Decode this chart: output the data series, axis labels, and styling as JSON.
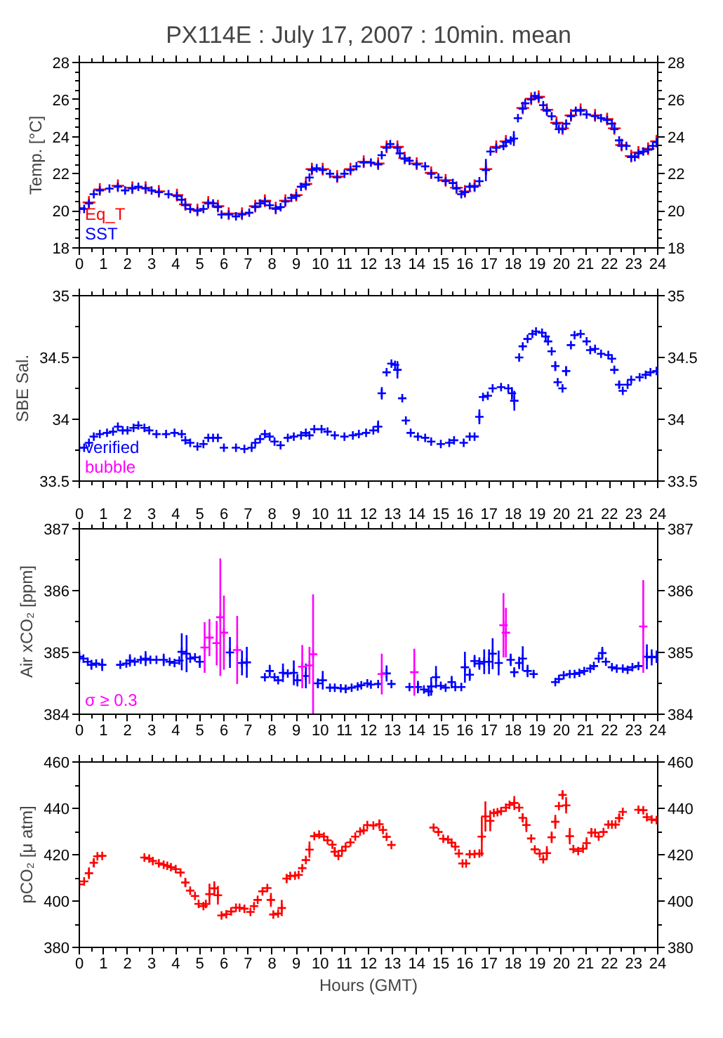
{
  "chart_data": [
    {
      "type": "scatter",
      "title": "PX114E : July 17, 2007 : 10min. mean",
      "ylabel": "Temp. [°C]",
      "marker": "cross",
      "legend": "bottom left",
      "xlim": [
        0,
        24
      ],
      "xticks": [
        0,
        1,
        2,
        3,
        4,
        5,
        6,
        7,
        8,
        9,
        10,
        11,
        12,
        13,
        14,
        15,
        16,
        17,
        18,
        19,
        20,
        21,
        22,
        23,
        24
      ],
      "ylim": [
        18,
        28
      ],
      "yticks": [
        18,
        20,
        22,
        24,
        26,
        28
      ],
      "y2lim": [
        18,
        28
      ],
      "y2ticks": [
        18,
        20,
        22,
        24,
        26,
        28
      ],
      "series": [
        {
          "name": "Eq_T",
          "color": "#ff0000",
          "x": [
            0,
            0.4,
            0.85,
            1.6,
            2.2,
            2.75,
            3.3,
            4.05,
            4.4,
            4.9,
            5.35,
            5.75,
            6.2,
            6.75,
            7.3,
            7.7,
            8.15,
            8.55,
            9.0,
            9.4,
            9.65,
            10.1,
            10.7,
            11.25,
            11.8,
            12.4,
            12.75,
            13.2,
            13.5,
            14.0,
            14.6,
            15.2,
            15.65,
            16.0,
            16.4,
            16.87,
            17.3,
            17.7,
            18.4,
            18.75,
            19.06,
            19.4,
            19.8,
            20.05,
            20.4,
            20.8,
            21.4,
            21.9,
            22.2,
            22.5,
            22.9,
            23.2,
            23.6,
            23.95
          ],
          "values": [
            20.15,
            20.45,
            21.15,
            21.35,
            21.25,
            21.25,
            21.05,
            20.85,
            20.35,
            20.05,
            20.45,
            20.25,
            19.85,
            19.85,
            20.25,
            20.55,
            20.15,
            20.55,
            20.85,
            21.45,
            22.25,
            22.25,
            21.85,
            22.25,
            22.65,
            22.55,
            23.45,
            23.45,
            22.85,
            22.55,
            22.05,
            21.65,
            21.25,
            21.05,
            21.35,
            22.25,
            23.45,
            23.75,
            25.55,
            26.05,
            26.15,
            25.45,
            24.75,
            24.45,
            25.15,
            25.45,
            25.15,
            24.95,
            24.45,
            23.55,
            22.95,
            23.15,
            23.35,
            23.75
          ]
        },
        {
          "name": "SST",
          "color": "#0000ff",
          "x": [
            0,
            0.2,
            0.4,
            0.6,
            0.85,
            1.25,
            1.6,
            1.9,
            2.2,
            2.45,
            2.75,
            3.0,
            3.3,
            3.7,
            4.05,
            4.25,
            4.4,
            4.6,
            4.9,
            5.15,
            5.35,
            5.55,
            5.75,
            5.9,
            6.2,
            6.5,
            6.75,
            7.05,
            7.3,
            7.5,
            7.7,
            7.9,
            8.15,
            8.35,
            8.55,
            8.8,
            9.0,
            9.2,
            9.4,
            9.55,
            9.65,
            9.85,
            10.1,
            10.4,
            10.7,
            11.0,
            11.25,
            11.5,
            11.8,
            12.1,
            12.4,
            12.55,
            12.75,
            12.9,
            13.2,
            13.3,
            13.5,
            13.7,
            14.0,
            14.35,
            14.6,
            14.9,
            15.2,
            15.5,
            15.65,
            15.85,
            16.0,
            16.2,
            16.4,
            16.6,
            16.87,
            17.06,
            17.3,
            17.6,
            17.7,
            17.9,
            18.03,
            18.2,
            18.4,
            18.5,
            18.75,
            18.9,
            19.06,
            19.25,
            19.4,
            19.6,
            19.8,
            19.9,
            20.05,
            20.2,
            20.4,
            20.6,
            20.8,
            21.05,
            21.4,
            21.65,
            21.9,
            22.1,
            22.2,
            22.4,
            22.5,
            22.7,
            22.9,
            23.05,
            23.2,
            23.4,
            23.6,
            23.8,
            23.95
          ],
          "values": [
            20.1,
            20.1,
            20.4,
            20.9,
            21.1,
            21.2,
            21.3,
            21.1,
            21.2,
            21.3,
            21.2,
            21.1,
            21.0,
            20.9,
            20.8,
            20.6,
            20.3,
            20.1,
            20.0,
            20.1,
            20.4,
            20.4,
            20.2,
            19.8,
            19.8,
            19.7,
            19.8,
            19.9,
            20.2,
            20.4,
            20.5,
            20.3,
            20.1,
            20.2,
            20.5,
            20.7,
            20.8,
            21.3,
            21.4,
            21.8,
            22.2,
            22.3,
            22.2,
            22.0,
            21.8,
            22.0,
            22.2,
            22.4,
            22.6,
            22.6,
            22.5,
            23.0,
            23.4,
            23.6,
            23.4,
            23.1,
            22.8,
            22.7,
            22.5,
            22.4,
            22.0,
            21.8,
            21.6,
            21.5,
            21.2,
            20.9,
            21.0,
            21.3,
            21.3,
            21.6,
            22.2,
            23.2,
            23.4,
            23.5,
            23.7,
            23.8,
            23.9,
            25.0,
            25.5,
            25.8,
            26.0,
            26.2,
            26.1,
            25.7,
            25.4,
            25.1,
            24.7,
            24.4,
            24.4,
            24.7,
            25.1,
            25.4,
            25.4,
            25.2,
            25.1,
            25.0,
            24.9,
            24.7,
            24.4,
            23.8,
            23.5,
            23.5,
            22.9,
            22.9,
            23.1,
            23.2,
            23.3,
            23.5,
            23.7
          ],
          "errors": [
            null,
            null,
            null,
            null,
            null,
            null,
            null,
            null,
            null,
            null,
            null,
            null,
            null,
            null,
            null,
            null,
            null,
            null,
            null,
            null,
            null,
            null,
            null,
            null,
            null,
            null,
            null,
            null,
            null,
            null,
            null,
            null,
            null,
            null,
            null,
            null,
            null,
            null,
            null,
            null,
            null,
            null,
            null,
            null,
            null,
            null,
            null,
            null,
            null,
            null,
            null,
            null,
            null,
            null,
            null,
            null,
            null,
            null,
            null,
            null,
            null,
            null,
            null,
            null,
            null,
            null,
            null,
            null,
            null,
            null,
            0.6,
            null,
            null,
            null,
            null,
            null,
            0.4,
            null,
            null,
            null,
            null,
            null,
            null,
            null,
            null,
            null,
            null,
            null,
            null,
            null,
            null,
            null,
            null,
            null,
            null,
            null,
            null,
            null,
            null,
            null,
            null,
            null,
            null,
            null,
            null,
            null,
            null,
            null,
            null
          ]
        }
      ]
    },
    {
      "type": "scatter",
      "ylabel": "SBE Sal.",
      "marker": "cross",
      "legend": "bottom left",
      "tick_labels": "y",
      "xlim": [
        0,
        24
      ],
      "xticks": [
        0,
        1,
        2,
        3,
        4,
        5,
        6,
        7,
        8,
        9,
        10,
        11,
        12,
        13,
        14,
        15,
        16,
        17,
        18,
        19,
        20,
        21,
        22,
        23,
        24
      ],
      "ylim": [
        33.5,
        35
      ],
      "yticks": [
        33.5,
        34,
        34.5,
        35
      ],
      "y2lim": [
        33.5,
        35
      ],
      "y2ticks": [
        33.5,
        34,
        34.5,
        35
      ],
      "series": [
        {
          "name": "verified",
          "color": "#0000ff",
          "x": [
            0,
            0.2,
            0.4,
            0.6,
            0.85,
            1.15,
            1.4,
            1.6,
            1.8,
            2.0,
            2.25,
            2.45,
            2.7,
            2.9,
            3.2,
            3.6,
            3.95,
            4.25,
            4.4,
            4.6,
            4.9,
            5.15,
            5.35,
            5.55,
            5.75,
            6.0,
            6.5,
            6.85,
            7.15,
            7.3,
            7.5,
            7.7,
            7.9,
            8.1,
            8.35,
            8.65,
            8.9,
            9.2,
            9.4,
            9.55,
            9.75,
            10.05,
            10.3,
            10.6,
            11.0,
            11.35,
            11.6,
            11.9,
            12.2,
            12.4,
            12.55,
            12.75,
            12.95,
            13.1,
            13.2,
            13.4,
            13.55,
            13.75,
            14.05,
            14.35,
            14.6,
            15.0,
            15.35,
            15.55,
            15.95,
            16.2,
            16.4,
            16.6,
            16.75,
            16.95,
            17.15,
            17.5,
            17.8,
            17.95,
            18.05,
            18.25,
            18.4,
            18.6,
            18.8,
            18.95,
            19.2,
            19.35,
            19.45,
            19.6,
            19.75,
            19.85,
            20.05,
            20.2,
            20.4,
            20.55,
            20.8,
            21.05,
            21.2,
            21.4,
            21.65,
            21.95,
            22.1,
            22.2,
            22.4,
            22.55,
            22.75,
            22.9,
            23.25,
            23.5,
            23.7,
            23.95
          ],
          "values": [
            33.77,
            33.77,
            33.81,
            33.86,
            33.88,
            33.89,
            33.9,
            33.94,
            33.91,
            33.91,
            33.93,
            33.95,
            33.93,
            33.91,
            33.88,
            33.88,
            33.89,
            33.88,
            33.83,
            33.81,
            33.78,
            33.8,
            33.85,
            33.85,
            33.85,
            33.77,
            33.77,
            33.76,
            33.77,
            33.81,
            33.84,
            33.88,
            33.86,
            33.82,
            33.79,
            33.85,
            33.86,
            33.87,
            33.89,
            33.87,
            33.92,
            33.92,
            33.9,
            33.87,
            33.86,
            33.87,
            33.88,
            33.89,
            33.91,
            33.94,
            34.21,
            34.38,
            34.45,
            34.44,
            34.4,
            34.17,
            33.99,
            33.89,
            33.86,
            33.85,
            33.82,
            33.8,
            33.81,
            33.83,
            33.81,
            33.86,
            33.86,
            34.02,
            34.18,
            34.19,
            34.25,
            34.26,
            34.25,
            34.21,
            34.15,
            34.5,
            34.59,
            34.65,
            34.69,
            34.71,
            34.7,
            34.67,
            34.63,
            34.55,
            34.43,
            34.3,
            34.25,
            34.39,
            34.6,
            34.68,
            34.69,
            34.63,
            34.56,
            34.57,
            34.53,
            34.52,
            34.49,
            34.4,
            34.28,
            34.23,
            34.28,
            34.32,
            34.34,
            34.36,
            34.38,
            34.39
          ],
          "errors": [
            null,
            null,
            null,
            null,
            null,
            null,
            null,
            null,
            null,
            null,
            null,
            null,
            null,
            null,
            null,
            null,
            null,
            null,
            null,
            null,
            null,
            null,
            null,
            null,
            null,
            null,
            null,
            null,
            null,
            null,
            null,
            null,
            null,
            null,
            null,
            null,
            null,
            null,
            null,
            null,
            null,
            null,
            null,
            null,
            null,
            null,
            null,
            null,
            null,
            0.05,
            0.05,
            null,
            null,
            null,
            0.07,
            null,
            null,
            null,
            null,
            null,
            null,
            null,
            null,
            null,
            null,
            null,
            null,
            0.06,
            null,
            null,
            null,
            null,
            null,
            0.05,
            0.08,
            null,
            null,
            null,
            null,
            null,
            null,
            null,
            null,
            null,
            0.04,
            null,
            null,
            0.04,
            null,
            null,
            null,
            null,
            null,
            null,
            null,
            null,
            null,
            null,
            0.03,
            null,
            null,
            null,
            null,
            null,
            null,
            null
          ]
        },
        {
          "name": "bubble",
          "color": "#ff00ff"
        }
      ]
    },
    {
      "type": "scatter",
      "ylabel": "Air xCO₂ [ppm]",
      "marker": "cross",
      "legend": "bottom left",
      "xlim": [
        0,
        24
      ],
      "xticks": [
        0,
        1,
        2,
        3,
        4,
        5,
        6,
        7,
        8,
        9,
        10,
        11,
        12,
        13,
        14,
        15,
        16,
        17,
        18,
        19,
        20,
        21,
        22,
        23,
        24
      ],
      "x2lim": [
        0,
        24
      ],
      "x2ticks": [
        0,
        1,
        2,
        3,
        4,
        5,
        6,
        7,
        8,
        9,
        10,
        11,
        12,
        13,
        14,
        15,
        16,
        17,
        18,
        19,
        20,
        21,
        22,
        23,
        24
      ],
      "ylim": [
        384,
        387
      ],
      "yticks": [
        384,
        385,
        386,
        387
      ],
      "y2lim": [
        384,
        387
      ],
      "y2ticks": [
        384,
        385,
        386,
        387
      ],
      "series": [
        {
          "color": "#0000ff",
          "x": [
            0.0,
            0.17,
            0.35,
            0.5,
            0.7,
            0.95,
            1.7,
            1.95,
            2.1,
            2.3,
            2.55,
            2.75,
            2.95,
            3.2,
            3.5,
            3.75,
            3.95,
            4.15,
            4.25,
            4.45,
            4.6,
            4.8,
            5.0,
            6.25,
            6.75,
            6.95,
            7.7,
            7.9,
            8.1,
            8.25,
            8.45,
            8.65,
            8.9,
            9.05,
            9.4,
            9.9,
            10.1,
            10.4,
            10.6,
            10.85,
            11.05,
            11.3,
            11.55,
            11.7,
            11.95,
            12.1,
            12.4,
            12.75,
            12.95,
            13.7,
            14.05,
            14.3,
            14.5,
            14.6,
            14.8,
            15.0,
            15.2,
            15.45,
            15.6,
            15.85,
            16.0,
            16.2,
            16.4,
            16.6,
            16.8,
            17.0,
            17.15,
            17.4,
            17.9,
            18.05,
            18.25,
            18.4,
            18.6,
            18.85,
            19.75,
            19.9,
            20.1,
            20.35,
            20.55,
            20.75,
            20.95,
            21.2,
            21.35,
            21.55,
            21.7,
            21.85,
            22.1,
            22.3,
            22.55,
            22.75,
            22.95,
            23.2,
            23.55,
            23.75,
            23.95
          ],
          "values": [
            384.93,
            384.9,
            384.85,
            384.8,
            384.82,
            384.8,
            384.8,
            384.82,
            384.87,
            384.85,
            384.88,
            384.9,
            384.88,
            384.88,
            384.88,
            384.85,
            384.83,
            384.87,
            385.01,
            384.98,
            384.9,
            384.92,
            384.85,
            385.0,
            384.83,
            384.84,
            384.6,
            384.7,
            384.6,
            384.55,
            384.67,
            384.66,
            384.67,
            384.55,
            384.62,
            384.5,
            384.55,
            384.43,
            384.43,
            384.42,
            384.41,
            384.43,
            384.45,
            384.47,
            384.5,
            384.48,
            384.49,
            384.66,
            384.49,
            384.44,
            384.44,
            384.4,
            384.37,
            384.45,
            384.6,
            384.46,
            384.43,
            384.52,
            384.44,
            384.44,
            384.76,
            384.64,
            384.86,
            384.82,
            384.85,
            384.85,
            384.98,
            384.83,
            384.88,
            384.68,
            384.83,
            384.9,
            384.7,
            384.65,
            384.52,
            384.57,
            384.63,
            384.65,
            384.65,
            384.67,
            384.7,
            384.74,
            384.78,
            384.9,
            384.99,
            384.85,
            384.76,
            384.74,
            384.74,
            384.72,
            384.76,
            384.78,
            384.93,
            384.92,
            384.93
          ],
          "errors": [
            0.1,
            null,
            null,
            0.08,
            null,
            0.1,
            null,
            null,
            0.1,
            null,
            null,
            0.12,
            null,
            null,
            0.1,
            null,
            null,
            null,
            0.3,
            0.3,
            null,
            null,
            0.1,
            0.25,
            0.2,
            0.25,
            null,
            0.1,
            null,
            null,
            0.15,
            null,
            0.2,
            0.1,
            0.2,
            0.08,
            0.15,
            null,
            null,
            null,
            0.07,
            null,
            null,
            null,
            null,
            null,
            null,
            0.13,
            null,
            null,
            0.1,
            null,
            0.08,
            0.15,
            0.18,
            null,
            null,
            0.1,
            null,
            null,
            0.25,
            0.1,
            0.1,
            0.1,
            0.2,
            0.2,
            0.25,
            0.2,
            0.1,
            0.08,
            0.1,
            0.2,
            0.1,
            0.06,
            null,
            null,
            null,
            null,
            null,
            null,
            null,
            null,
            null,
            null,
            0.1,
            null,
            null,
            null,
            null,
            null,
            null,
            null,
            0.2,
            0.13,
            0.1
          ]
        },
        {
          "name": "σ ≥ 0.3",
          "color": "#ff00ff",
          "x": [
            5.2,
            5.4,
            5.7,
            5.85,
            6.0,
            6.55,
            9.25,
            9.55,
            9.7,
            12.55,
            13.9,
            17.6,
            17.7,
            23.4
          ],
          "values": [
            385.08,
            385.24,
            385.15,
            385.57,
            385.32,
            385.04,
            384.77,
            384.79,
            384.97,
            384.65,
            384.68,
            385.44,
            385.32,
            385.42
          ],
          "errors": [
            0.41,
            0.3,
            0.36,
            0.95,
            0.6,
            0.55,
            0.35,
            0.3,
            0.97,
            0.33,
            0.38,
            0.52,
            0.4,
            0.75
          ]
        }
      ]
    },
    {
      "type": "scatter",
      "ylabel": "pCO₂ [μ atm]",
      "xlabel": "Hours (GMT)",
      "marker": "cross",
      "xlim": [
        0,
        24
      ],
      "xticks": [
        0,
        1,
        2,
        3,
        4,
        5,
        6,
        7,
        8,
        9,
        10,
        11,
        12,
        13,
        14,
        15,
        16,
        17,
        18,
        19,
        20,
        21,
        22,
        23,
        24
      ],
      "ylim": [
        380,
        460
      ],
      "yticks": [
        380,
        400,
        420,
        440,
        460
      ],
      "y2lim": [
        380,
        460
      ],
      "y2ticks": [
        380,
        400,
        420,
        440,
        460
      ],
      "series": [
        {
          "color": "#ff0000",
          "x": [
            0.0,
            0.2,
            0.4,
            0.6,
            0.75,
            0.95,
            2.7,
            2.9,
            3.05,
            3.3,
            3.5,
            3.65,
            3.8,
            4.0,
            4.2,
            4.4,
            4.6,
            4.8,
            4.95,
            5.15,
            5.25,
            5.4,
            5.6,
            5.75,
            5.9,
            6.1,
            6.3,
            6.5,
            6.65,
            6.85,
            7.1,
            7.25,
            7.4,
            7.6,
            7.8,
            7.95,
            8.05,
            8.25,
            8.4,
            8.6,
            8.75,
            8.95,
            9.1,
            9.25,
            9.4,
            9.55,
            9.75,
            9.95,
            10.15,
            10.3,
            10.5,
            10.6,
            10.75,
            10.9,
            11.05,
            11.25,
            11.45,
            11.65,
            11.8,
            11.95,
            12.2,
            12.45,
            12.6,
            12.75,
            12.95,
            14.7,
            14.9,
            15.1,
            15.3,
            15.45,
            15.6,
            15.75,
            15.9,
            16.05,
            16.2,
            16.4,
            16.6,
            16.7,
            16.85,
            17.05,
            17.2,
            17.35,
            17.5,
            17.7,
            17.85,
            18.05,
            18.25,
            18.4,
            18.55,
            18.75,
            18.9,
            19.1,
            19.25,
            19.4,
            19.6,
            19.75,
            19.9,
            20.05,
            20.2,
            20.35,
            20.5,
            20.7,
            20.9,
            21.05,
            21.25,
            21.4,
            21.55,
            21.75,
            21.95,
            22.1,
            22.25,
            22.4,
            22.55,
            23.2,
            23.4,
            23.55,
            23.75,
            23.95
          ],
          "values": [
            407.2,
            408.5,
            412,
            416.5,
            419.3,
            419.5,
            418.8,
            418.3,
            417.3,
            416.3,
            415.7,
            415.2,
            414.6,
            413.8,
            412.3,
            408,
            404.5,
            402.2,
            398.8,
            397.8,
            398.7,
            403,
            405.5,
            402.5,
            393.8,
            394.3,
            395.5,
            397.1,
            397.1,
            396.7,
            395.3,
            397.8,
            400.5,
            404.2,
            405.6,
            400.5,
            394.2,
            394.6,
            397,
            409.7,
            410.8,
            411,
            411.3,
            414.2,
            417.7,
            422.2,
            428,
            428.7,
            427.8,
            426.2,
            424.3,
            421.3,
            419.5,
            421.7,
            423.5,
            425.3,
            427.8,
            430,
            430.5,
            432.8,
            432.6,
            433.2,
            430.7,
            427.7,
            424.2,
            431.7,
            429.8,
            426.9,
            426.5,
            425.2,
            423.5,
            420.5,
            416.2,
            416.2,
            420.2,
            420.3,
            420.5,
            427.8,
            436.5,
            434.6,
            438,
            438.3,
            438.8,
            440.3,
            441.5,
            442.3,
            440.3,
            435.9,
            432.8,
            427,
            422.3,
            420.5,
            418,
            420.7,
            427.5,
            434.2,
            441,
            445.8,
            441.3,
            428,
            422.4,
            421.6,
            422.6,
            425,
            429.5,
            429.5,
            427.8,
            429.8,
            433,
            433,
            433,
            435.8,
            438.5,
            439.4,
            439.2,
            436.2,
            435.2,
            434.9
          ],
          "errors": [
            null,
            null,
            2.5,
            2,
            null,
            null,
            null,
            null,
            null,
            null,
            null,
            null,
            null,
            null,
            null,
            2,
            null,
            null,
            null,
            null,
            null,
            4.5,
            3,
            4,
            null,
            null,
            null,
            null,
            null,
            null,
            null,
            null,
            null,
            null,
            null,
            3,
            null,
            null,
            3.5,
            2,
            null,
            null,
            null,
            null,
            null,
            3.5,
            null,
            null,
            null,
            null,
            null,
            2,
            null,
            null,
            null,
            null,
            null,
            null,
            null,
            null,
            null,
            2,
            null,
            null,
            null,
            null,
            null,
            null,
            null,
            null,
            null,
            null,
            null,
            null,
            null,
            null,
            null,
            8.5,
            6.5,
            4.5,
            null,
            null,
            null,
            null,
            null,
            3,
            null,
            2,
            3,
            null,
            null,
            null,
            null,
            3,
            2.5,
            3,
            null,
            2,
            3.5,
            3.5,
            null,
            null,
            null,
            2.5,
            2,
            null,
            null,
            null,
            null,
            null,
            null,
            2,
            null,
            null,
            null,
            null,
            null,
            null
          ]
        }
      ]
    }
  ]
}
